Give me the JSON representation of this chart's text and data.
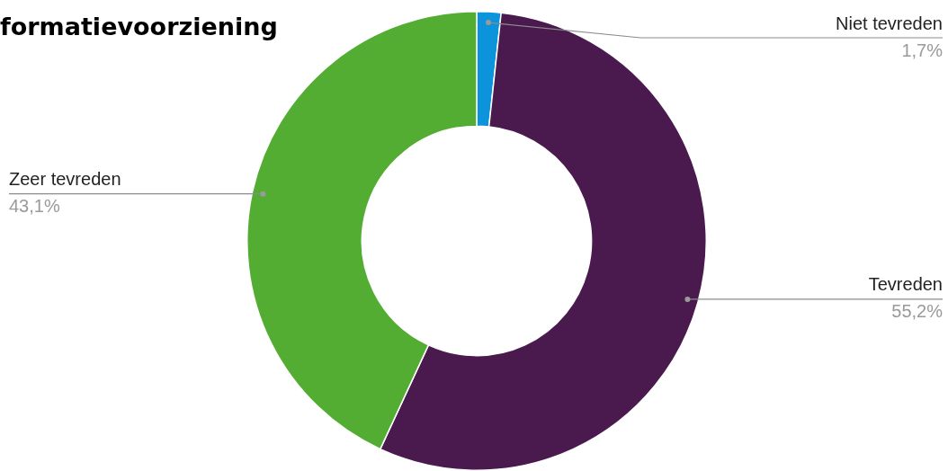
{
  "chart_data": {
    "type": "donut",
    "title": "formatievoorziening",
    "categories": [
      "Niet tevreden",
      "Tevreden",
      "Zeer tevreden"
    ],
    "values": [
      1.7,
      55.2,
      43.1
    ],
    "value_labels": [
      "1,7%",
      "55,2%",
      "43,1%"
    ],
    "colors": [
      "#0b93db",
      "#4a1a4e",
      "#53ad33"
    ],
    "legend": false
  }
}
